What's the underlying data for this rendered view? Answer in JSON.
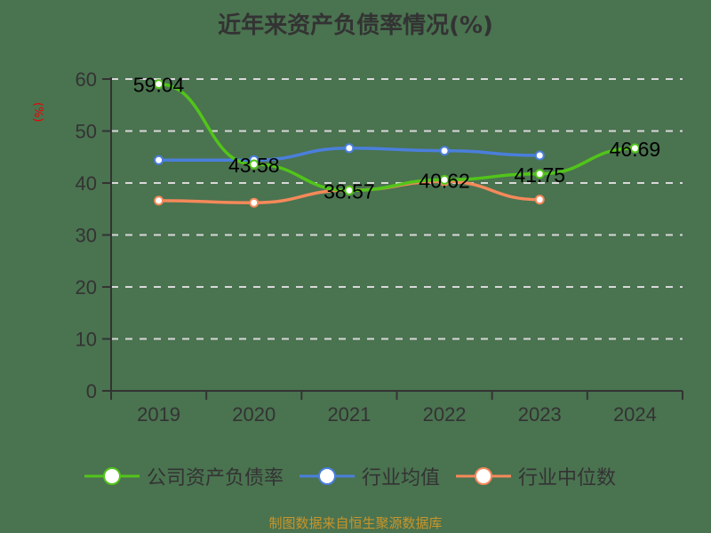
{
  "chart_data": {
    "type": "line",
    "title": "近年来资产负债率情况(%)",
    "ylabel": "(%)",
    "xlabel": "",
    "ylim": [
      0,
      60
    ],
    "yticks": [
      0,
      10,
      20,
      30,
      40,
      50,
      60
    ],
    "grid": true,
    "legend_position": "bottom",
    "categories": [
      "2019",
      "2020",
      "2021",
      "2022",
      "2023",
      "2024"
    ],
    "series": [
      {
        "name": "公司资产负债率",
        "color": "#52c41a",
        "values": [
          59.04,
          43.58,
          38.57,
          40.62,
          41.75,
          46.69
        ],
        "labels": true
      },
      {
        "name": "行业均值",
        "color": "#4a7fdc",
        "values": [
          44.4,
          44.4,
          46.7,
          46.2,
          45.3,
          null
        ]
      },
      {
        "name": "行业中位数",
        "color": "#f5895a",
        "values": [
          36.6,
          36.2,
          38.6,
          40.3,
          36.8,
          null
        ]
      }
    ]
  },
  "footer": "制图数据来自恒生聚源数据库"
}
